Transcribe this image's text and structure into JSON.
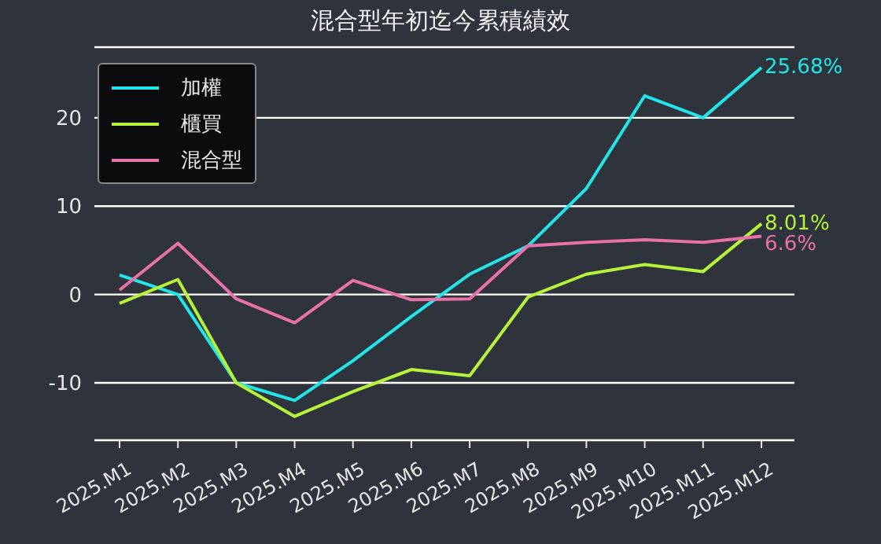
{
  "chart_data": {
    "type": "line",
    "title": "混合型年初迄今累積績效",
    "categories": [
      "2025.M1",
      "2025.M2",
      "2025.M3",
      "2025.M4",
      "2025.M5",
      "2025.M6",
      "2025.M7",
      "2025.M8",
      "2025.M9",
      "2025.M10",
      "2025.M11",
      "2025.M12"
    ],
    "series": [
      {
        "name": "加權",
        "color": "#22e5e8",
        "values": [
          2.2,
          0,
          -10,
          -12,
          -7.5,
          -2.5,
          2.3,
          5.5,
          12,
          22.5,
          20,
          25.68
        ]
      },
      {
        "name": "櫃買",
        "color": "#b5f23a",
        "values": [
          -1,
          1.7,
          -10,
          -13.8,
          -11,
          -8.5,
          -9.2,
          -0.3,
          2.3,
          3.4,
          2.6,
          8.01
        ]
      },
      {
        "name": "混合型",
        "color": "#e872a8",
        "values": [
          0.5,
          5.8,
          -0.5,
          -3.2,
          1.6,
          -0.6,
          -0.5,
          5.5,
          5.9,
          6.2,
          5.9,
          6.6
        ]
      }
    ],
    "annotations": [
      {
        "text": "25.68%",
        "x": "2025.M12",
        "y": 25.68
      },
      {
        "text": "8.01%",
        "x": "2025.M12",
        "y": 8.01
      },
      {
        "text": "6.6%",
        "x": "2025.M12",
        "y": 6.6
      }
    ],
    "ylim": [
      -16.5,
      28
    ],
    "yticks": [
      -10,
      0,
      10,
      20
    ],
    "grid": "y",
    "legend": "top left",
    "marker": "none",
    "line_style": "solid"
  }
}
